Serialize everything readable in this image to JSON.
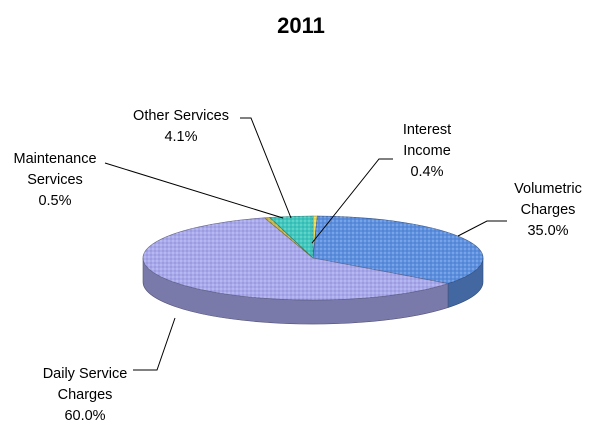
{
  "chart_data": {
    "type": "pie",
    "title": "2011",
    "slices": [
      {
        "label": [
          "Interest",
          "Income"
        ],
        "value": 0.4,
        "value_label": "0.4%",
        "color": "#f2e35a"
      },
      {
        "label": [
          "Volumetric",
          "Charges"
        ],
        "value": 35.0,
        "value_label": "35.0%",
        "color": "#5b8fe0"
      },
      {
        "label": [
          "Daily Service",
          "Charges"
        ],
        "value": 60.0,
        "value_label": "60.0%",
        "color": "#a8a8ec"
      },
      {
        "label": [
          "Maintenance",
          "Services"
        ],
        "value": 0.5,
        "value_label": "0.5%",
        "color": "#c8b84a"
      },
      {
        "label": [
          "Other Services"
        ],
        "value": 4.1,
        "value_label": "4.1%",
        "color": "#3ec8be"
      }
    ],
    "legend": "none",
    "style": "3d"
  }
}
